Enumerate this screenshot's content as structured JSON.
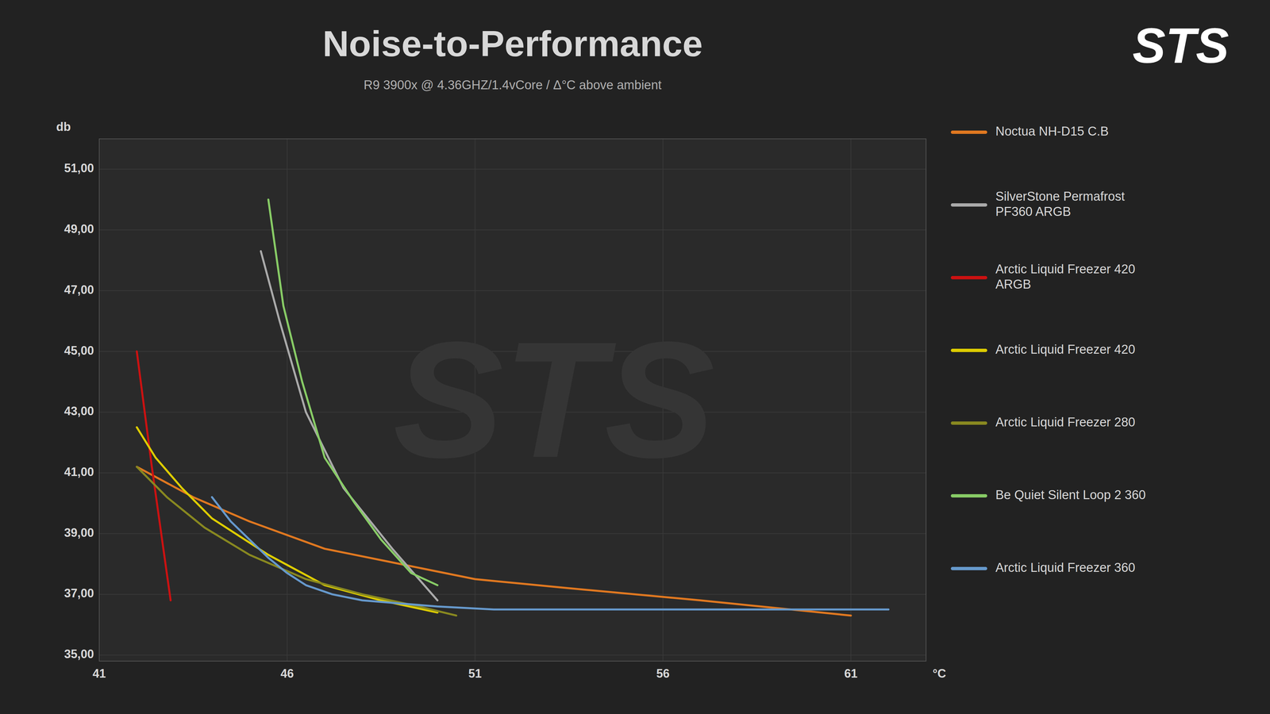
{
  "chart_data": {
    "type": "line",
    "title": "Noise-to-Performance",
    "subtitle": "R9 3900x @ 4.36GHZ/1.4vCore  /  Δ°C above ambient",
    "annotations": [
      "STS",
      "STS"
    ],
    "xlabel": "°C",
    "ylabel": "db",
    "xlim": [
      41,
      63
    ],
    "ylim": [
      34.8,
      52.0
    ],
    "xticks": [
      41,
      46,
      51,
      56,
      61
    ],
    "yticks": [
      {
        "value": 35.0,
        "label": "35,00"
      },
      {
        "value": 37.0,
        "label": "37,00"
      },
      {
        "value": 39.0,
        "label": "39,00"
      },
      {
        "value": 41.0,
        "label": "41,00"
      },
      {
        "value": 43.0,
        "label": "43,00"
      },
      {
        "value": 45.0,
        "label": "45,00"
      },
      {
        "value": 47.0,
        "label": "47,00"
      },
      {
        "value": 49.0,
        "label": "49,00"
      },
      {
        "value": 51.0,
        "label": "51,00"
      }
    ],
    "grid": true,
    "legend": "right",
    "series": [
      {
        "name": "Noctua NH-D15 C.B",
        "color": "#e07820",
        "x": [
          42.0,
          43.5,
          45.0,
          47.0,
          49.0,
          51.0,
          53.5,
          57.0,
          61.0
        ],
        "values": [
          41.2,
          40.2,
          39.4,
          38.5,
          38.0,
          37.5,
          37.2,
          36.8,
          36.3
        ]
      },
      {
        "name": "SilverStone Permafrost\nPF360 ARGB",
        "color": "#aaaaaa",
        "x": [
          45.3,
          45.8,
          46.5,
          47.5,
          48.8,
          50.0
        ],
        "values": [
          48.3,
          46.0,
          43.0,
          40.5,
          38.5,
          36.8
        ]
      },
      {
        "name": "Arctic Liquid Freezer 420\nARGB",
        "color": "#cc1111",
        "x": [
          42.0,
          42.4,
          42.9
        ],
        "values": [
          45.0,
          41.2,
          36.8
        ]
      },
      {
        "name": "Arctic Liquid Freezer 420",
        "color": "#ddcc00",
        "x": [
          42.0,
          42.5,
          43.2,
          44.0,
          45.5,
          47.0,
          48.5,
          50.0
        ],
        "values": [
          42.5,
          41.5,
          40.5,
          39.5,
          38.3,
          37.3,
          36.8,
          36.4
        ]
      },
      {
        "name": "Arctic Liquid Freezer 280",
        "color": "#888820",
        "x": [
          42.0,
          42.8,
          43.8,
          45.0,
          46.5,
          48.0,
          49.5,
          50.5
        ],
        "values": [
          41.2,
          40.2,
          39.2,
          38.3,
          37.5,
          37.0,
          36.6,
          36.3
        ]
      },
      {
        "name": "Be Quiet Silent Loop 2 360",
        "color": "#88cc66",
        "x": [
          45.5,
          45.9,
          46.4,
          47.0,
          47.8,
          48.5,
          49.3,
          50.0
        ],
        "values": [
          50.0,
          46.5,
          44.0,
          41.5,
          40.0,
          38.8,
          37.7,
          37.3
        ]
      },
      {
        "name": "Arctic Liquid Freezer 360",
        "color": "#6699cc",
        "x": [
          44.0,
          44.5,
          45.0,
          45.5,
          46.0,
          46.5,
          47.2,
          48.0,
          49.0,
          50.0,
          51.5,
          62.0
        ],
        "values": [
          40.2,
          39.4,
          38.8,
          38.2,
          37.7,
          37.3,
          37.0,
          36.8,
          36.7,
          36.6,
          36.5,
          36.5
        ]
      }
    ]
  }
}
